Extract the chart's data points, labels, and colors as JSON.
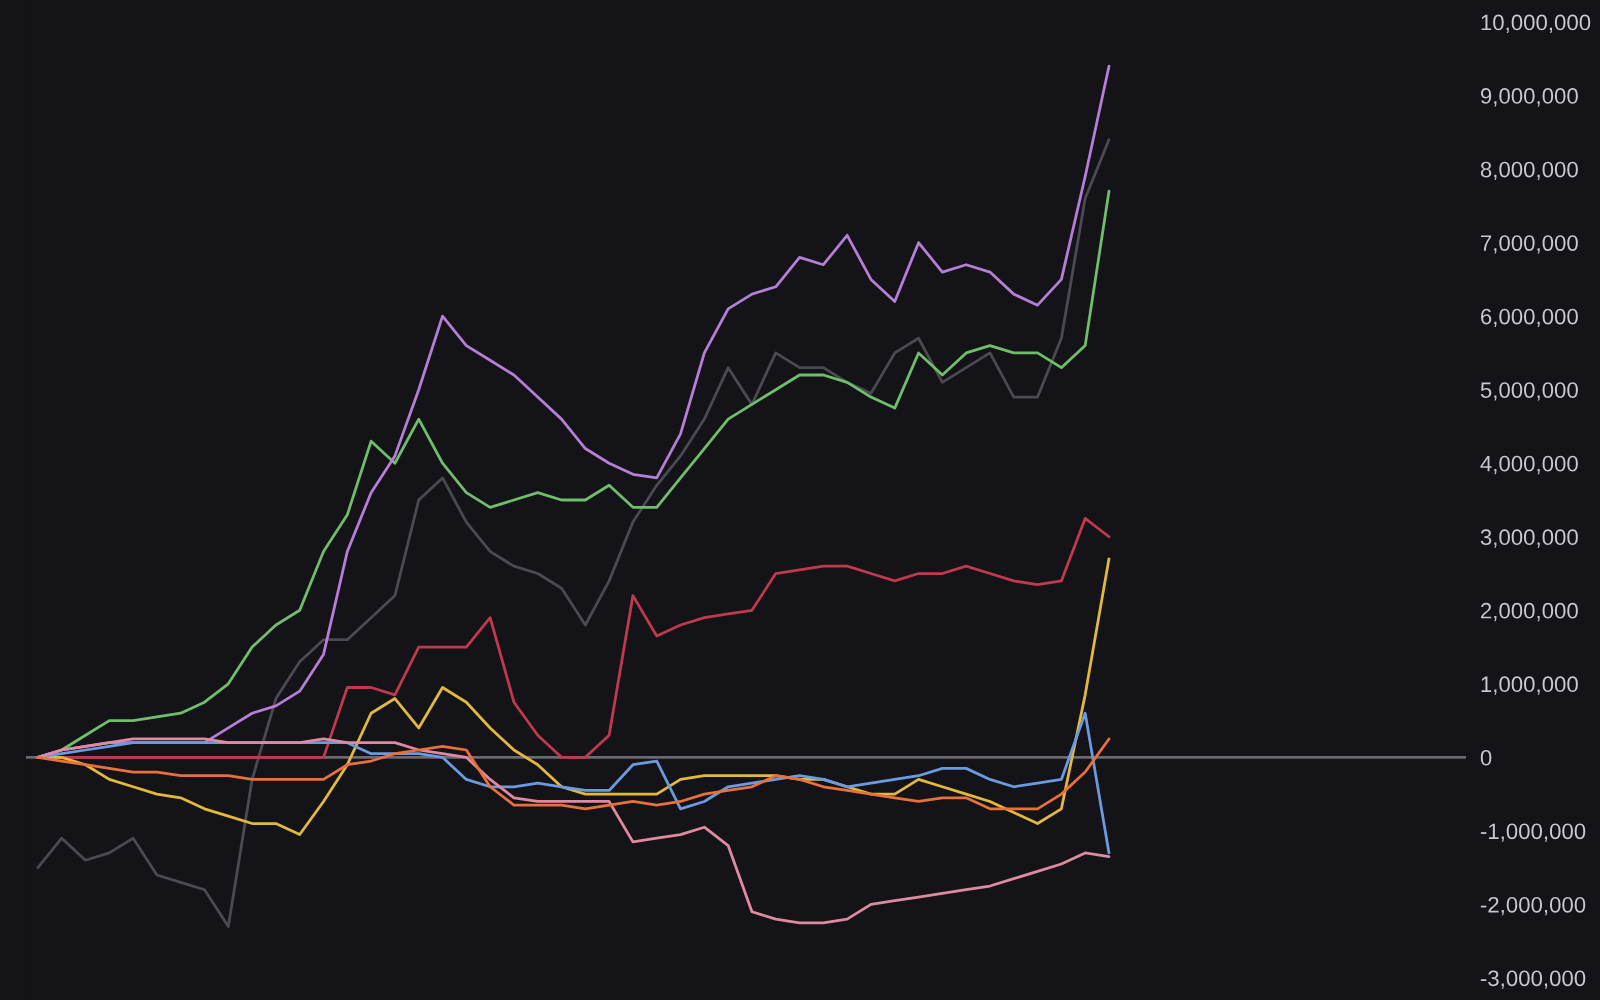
{
  "chart_data": {
    "type": "line",
    "categories": [
      null,
      null,
      null,
      null,
      null,
      null,
      null,
      null,
      null,
      null,
      null,
      null,
      null,
      null,
      null,
      null,
      null,
      null,
      null,
      null,
      null,
      null,
      null,
      null,
      null,
      null,
      null,
      null,
      null,
      null,
      null,
      null,
      null,
      null,
      null,
      null,
      null,
      null,
      null,
      null,
      null,
      null,
      null,
      null,
      null,
      null,
      null,
      null,
      null,
      null,
      null,
      null,
      null,
      null,
      null,
      null,
      null,
      null,
      null,
      null,
      null
    ],
    "series": [
      {
        "color": "#4a4a50",
        "values": [
          -1500000,
          -1100000,
          -1400000,
          -1300000,
          -1100000,
          -1600000,
          -1700000,
          -1800000,
          -2300000,
          -300000,
          800000,
          1300000,
          1600000,
          1600000,
          1900000,
          2200000,
          3500000,
          3800000,
          3200000,
          2800000,
          2600000,
          2500000,
          2300000,
          1800000,
          2400000,
          3200000,
          3700000,
          4100000,
          4600000,
          5300000,
          4800000,
          5500000,
          5300000,
          5300000,
          5100000,
          4950000,
          5500000,
          5700000,
          5100000,
          5300000,
          5500000,
          4900000,
          4900000,
          5700000,
          7600000,
          8400000,
          null,
          null,
          null,
          null,
          null,
          null,
          null,
          null,
          null,
          null,
          null,
          null,
          null,
          null,
          null
        ]
      },
      {
        "color": "#6fbf6a",
        "values": [
          0,
          100000,
          300000,
          500000,
          500000,
          550000,
          600000,
          750000,
          1000000,
          1500000,
          1800000,
          2000000,
          2800000,
          3300000,
          4300000,
          4000000,
          4600000,
          4000000,
          3600000,
          3400000,
          3500000,
          3600000,
          3500000,
          3500000,
          3700000,
          3400000,
          3400000,
          3800000,
          4200000,
          4600000,
          4800000,
          5000000,
          5200000,
          5200000,
          5100000,
          4900000,
          4750000,
          5500000,
          5200000,
          5500000,
          5600000,
          5500000,
          5500000,
          5300000,
          5600000,
          7700000,
          null,
          null,
          null,
          null,
          null,
          null,
          null,
          null,
          null,
          null,
          null,
          null,
          null,
          null,
          null
        ]
      },
      {
        "color": "#b57fd6",
        "values": [
          0,
          100000,
          150000,
          200000,
          200000,
          200000,
          200000,
          200000,
          400000,
          600000,
          700000,
          900000,
          1400000,
          2800000,
          3600000,
          4100000,
          5000000,
          6000000,
          5600000,
          5400000,
          5200000,
          4900000,
          4600000,
          4200000,
          4000000,
          3850000,
          3800000,
          4400000,
          5500000,
          6100000,
          6300000,
          6400000,
          6800000,
          6700000,
          7100000,
          6500000,
          6200000,
          7000000,
          6600000,
          6700000,
          6600000,
          6300000,
          6150000,
          6500000,
          7900000,
          9400000,
          null,
          null,
          null,
          null,
          null,
          null,
          null,
          null,
          null,
          null,
          null,
          null,
          null,
          null,
          null
        ]
      },
      {
        "color": "#c0394f",
        "values": [
          0,
          0,
          0,
          0,
          0,
          0,
          0,
          0,
          0,
          0,
          0,
          0,
          0,
          950000,
          950000,
          850000,
          1500000,
          1500000,
          1500000,
          1900000,
          750000,
          300000,
          0,
          0,
          300000,
          2200000,
          1650000,
          1800000,
          1900000,
          1950000,
          2000000,
          2500000,
          2550000,
          2600000,
          2600000,
          2500000,
          2400000,
          2500000,
          2500000,
          2600000,
          2500000,
          2400000,
          2350000,
          2400000,
          3250000,
          3000000,
          null,
          null,
          null,
          null,
          null,
          null,
          null,
          null,
          null,
          null,
          null,
          null,
          null,
          null,
          null
        ]
      },
      {
        "color": "#e3b93c",
        "values": [
          0,
          0,
          -100000,
          -300000,
          -400000,
          -500000,
          -550000,
          -700000,
          -800000,
          -900000,
          -900000,
          -1050000,
          -600000,
          -100000,
          600000,
          800000,
          400000,
          950000,
          750000,
          400000,
          100000,
          -100000,
          -400000,
          -500000,
          -500000,
          -500000,
          -500000,
          -300000,
          -250000,
          -250000,
          -250000,
          -250000,
          -300000,
          -300000,
          -400000,
          -500000,
          -500000,
          -300000,
          -400000,
          -500000,
          -600000,
          -750000,
          -900000,
          -700000,
          850000,
          2700000,
          null,
          null,
          null,
          null,
          null,
          null,
          null,
          null,
          null,
          null,
          null,
          null,
          null,
          null,
          null
        ]
      },
      {
        "color": "#6a9be0",
        "values": [
          0,
          50000,
          100000,
          150000,
          200000,
          200000,
          200000,
          200000,
          200000,
          200000,
          200000,
          200000,
          200000,
          200000,
          50000,
          50000,
          50000,
          0,
          -300000,
          -400000,
          -400000,
          -350000,
          -400000,
          -450000,
          -450000,
          -100000,
          -50000,
          -700000,
          -600000,
          -400000,
          -350000,
          -300000,
          -250000,
          -300000,
          -400000,
          -350000,
          -300000,
          -250000,
          -150000,
          -150000,
          -300000,
          -400000,
          -350000,
          -300000,
          600000,
          -1300000,
          null,
          null,
          null,
          null,
          null,
          null,
          null,
          null,
          null,
          null,
          null,
          null,
          null,
          null,
          null
        ]
      },
      {
        "color": "#e08aa0",
        "values": [
          0,
          100000,
          150000,
          200000,
          250000,
          250000,
          250000,
          250000,
          200000,
          200000,
          200000,
          200000,
          250000,
          200000,
          200000,
          200000,
          100000,
          50000,
          0,
          -300000,
          -550000,
          -600000,
          -600000,
          -600000,
          -600000,
          -1150000,
          -1100000,
          -1050000,
          -950000,
          -1200000,
          -2100000,
          -2200000,
          -2250000,
          -2250000,
          -2200000,
          -2000000,
          -1950000,
          -1900000,
          -1850000,
          -1800000,
          -1750000,
          -1650000,
          -1550000,
          -1450000,
          -1300000,
          -1350000,
          null,
          null,
          null,
          null,
          null,
          null,
          null,
          null,
          null,
          null,
          null,
          null,
          null,
          null,
          null
        ]
      },
      {
        "color": "#e8703a",
        "values": [
          0,
          -50000,
          -100000,
          -150000,
          -200000,
          -200000,
          -250000,
          -250000,
          -250000,
          -300000,
          -300000,
          -300000,
          -300000,
          -100000,
          -50000,
          50000,
          100000,
          150000,
          100000,
          -400000,
          -650000,
          -650000,
          -650000,
          -700000,
          -650000,
          -600000,
          -650000,
          -600000,
          -500000,
          -450000,
          -400000,
          -250000,
          -300000,
          -400000,
          -450000,
          -500000,
          -550000,
          -600000,
          -550000,
          -550000,
          -700000,
          -700000,
          -700000,
          -500000,
          -200000,
          250000,
          null,
          null,
          null,
          null,
          null,
          null,
          null,
          null,
          null,
          null,
          null,
          null,
          null,
          null,
          null
        ]
      }
    ],
    "ylim": [
      -3300000,
      10300000
    ],
    "yticks": [
      {
        "value": 10000000,
        "label": "10,000,000"
      },
      {
        "value": 9000000,
        "label": "9,000,000"
      },
      {
        "value": 8000000,
        "label": "8,000,000"
      },
      {
        "value": 7000000,
        "label": "7,000,000"
      },
      {
        "value": 6000000,
        "label": "6,000,000"
      },
      {
        "value": 5000000,
        "label": "5,000,000"
      },
      {
        "value": 4000000,
        "label": "4,000,000"
      },
      {
        "value": 3000000,
        "label": "3,000,000"
      },
      {
        "value": 2000000,
        "label": "2,000,000"
      },
      {
        "value": 1000000,
        "label": "1,000,000"
      },
      0,
      {
        "value": -1000000,
        "label": "-1,000,000"
      },
      {
        "value": -2000000,
        "label": "-2,000,000"
      },
      {
        "value": -3000000,
        "label": "-3,000,000"
      }
    ],
    "ref_lines": [
      {
        "axis": "y",
        "value": 0,
        "color": "#6a6a70"
      }
    ],
    "tick_labels": "y",
    "grid": false,
    "legend": false,
    "marker": "none",
    "line_style": "solid"
  }
}
